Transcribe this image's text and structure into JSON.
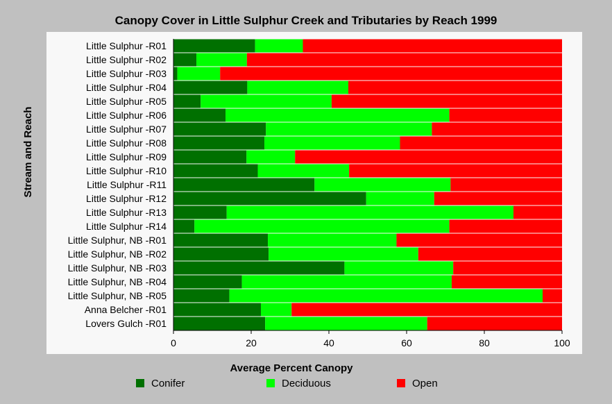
{
  "chart_data": {
    "type": "bar",
    "stacked": true,
    "orientation": "horizontal",
    "title": "Canopy Cover in Little Sulphur Creek and Tributaries by Reach 1999",
    "xlabel": "Average Percent Canopy",
    "ylabel": "Stream and Reach",
    "xlim": [
      0,
      100
    ],
    "xticks": [
      "0",
      "20",
      "40",
      "60",
      "80",
      "100"
    ],
    "categories": [
      "Little Sulphur -R01",
      "Little Sulphur -R02",
      "Little Sulphur -R03",
      "Little Sulphur -R04",
      "Little Sulphur -R05",
      "Little Sulphur -R06",
      "Little Sulphur -R07",
      "Little Sulphur -R08",
      "Little Sulphur -R09",
      "Little Sulphur -R10",
      "Little Sulphur -R11",
      "Little Sulphur -R12",
      "Little Sulphur -R13",
      "Little Sulphur -R14",
      "Little Sulphur, NB -R01",
      "Little Sulphur, NB -R02",
      "Little Sulphur, NB -R03",
      "Little Sulphur, NB -R04",
      "Little Sulphur, NB -R05",
      "Anna Belcher -R01",
      "Lovers Gulch -R01"
    ],
    "series": [
      {
        "name": "Conifer",
        "color": "#007000",
        "values": [
          21,
          5.9,
          1,
          19,
          7,
          13.4,
          23.8,
          23.4,
          18.8,
          21.7,
          36.3,
          49.6,
          13.7,
          5.4,
          24.3,
          24.5,
          44,
          17.6,
          14.4,
          22.5,
          23.6
        ]
      },
      {
        "name": "Deciduous",
        "color": "#00ff00",
        "values": [
          12.3,
          13,
          11,
          26,
          33.7,
          57.6,
          42.7,
          34.9,
          12.5,
          23.5,
          35,
          17.5,
          73.8,
          65.6,
          33.1,
          38.5,
          28,
          54,
          80.6,
          7.9,
          41.7
        ]
      },
      {
        "name": "Open",
        "color": "#ff0000",
        "values": [
          66.7,
          81.1,
          88,
          55,
          59.3,
          29,
          33.5,
          41.7,
          68.7,
          54.8,
          28.7,
          32.9,
          12.5,
          29,
          42.6,
          37,
          28,
          28.4,
          5,
          69.6,
          34.7
        ]
      }
    ],
    "legend_position": "bottom",
    "grid": false
  }
}
